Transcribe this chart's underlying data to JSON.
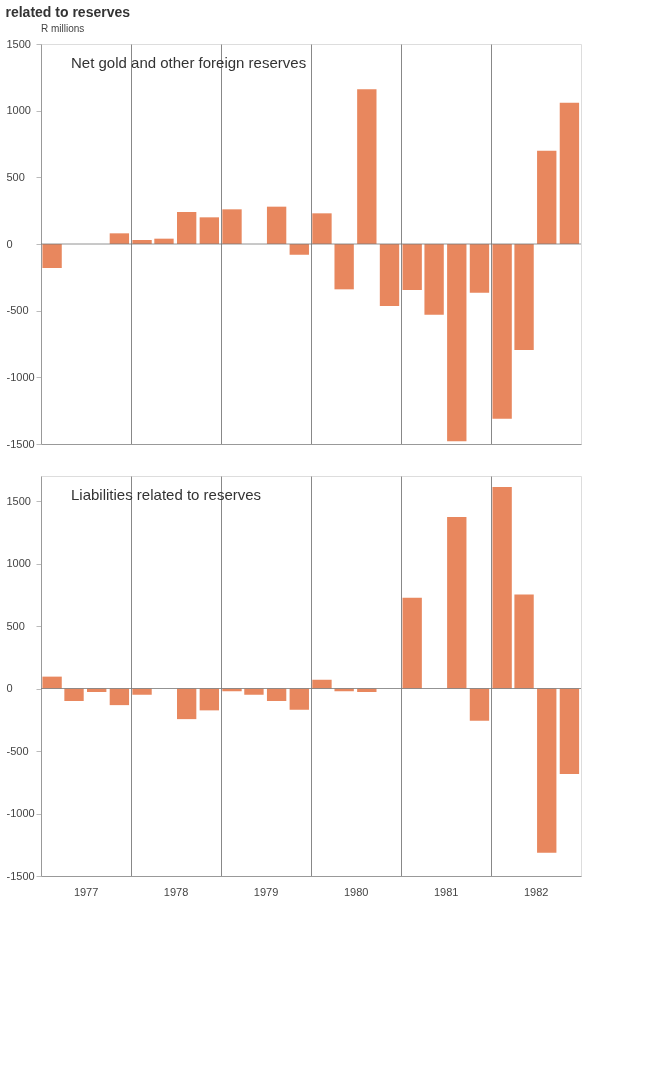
{
  "chart_data": [
    {
      "type": "bar",
      "title": "Net gold and other foreign reserves",
      "ylabel": "R millions",
      "annotations": [
        "related to reserves"
      ],
      "x": [
        "1977-02-15",
        "1977-05-15",
        "1977-08-15",
        "1977-11-15",
        "1978-02-15",
        "1978-05-15",
        "1978-08-15",
        "1978-11-15",
        "1979-02-15",
        "1979-05-15",
        "1979-08-15",
        "1979-11-15",
        "1980-02-15",
        "1980-05-15",
        "1980-08-15",
        "1980-11-15",
        "1981-02-15",
        "1981-05-15",
        "1981-08-15",
        "1981-11-15",
        "1982-02-15",
        "1982-05-15",
        "1982-08-15",
        "1982-11-15"
      ],
      "series": [
        {
          "color": "#e8875e",
          "values": [
            -180,
            0,
            0,
            80,
            30,
            40,
            240,
            200,
            260,
            0,
            280,
            -80,
            230,
            -340,
            1160,
            -465,
            -345,
            -530,
            -1480,
            -365,
            -1310,
            -795,
            700,
            1060
          ]
        }
      ],
      "xlim": [
        "1977-01-01",
        "1983-01-01"
      ],
      "xticks": [
        {
          "value": "1978-01-01",
          "label": null
        },
        {
          "value": "1979-01-01",
          "label": null
        },
        {
          "value": "1980-01-01",
          "label": null
        },
        {
          "value": "1981-01-01",
          "label": null
        },
        {
          "value": "1982-01-01",
          "label": null
        }
      ],
      "ylim": [
        -1500,
        1500
      ],
      "yticks": [
        -1500,
        -1000,
        -500,
        0,
        500,
        1000,
        1500
      ],
      "tick_labels": "y",
      "grid": "x",
      "ref_lines": [
        {
          "axis": "y",
          "value": 0
        }
      ]
    },
    {
      "type": "bar",
      "title": "Liabilities related to reserves",
      "x": [
        "1977-02-15",
        "1977-05-15",
        "1977-08-15",
        "1977-11-15",
        "1978-02-15",
        "1978-05-15",
        "1978-08-15",
        "1978-11-15",
        "1979-02-15",
        "1979-05-15",
        "1979-08-15",
        "1979-11-15",
        "1980-02-15",
        "1980-05-15",
        "1980-08-15",
        "1980-11-15",
        "1981-02-15",
        "1981-05-15",
        "1981-08-15",
        "1981-11-15",
        "1982-02-15",
        "1982-05-15",
        "1982-08-15",
        "1982-11-15"
      ],
      "series": [
        {
          "color": "#e8875e",
          "values": [
            95,
            -100,
            -28,
            -133,
            -50,
            0,
            -245,
            -175,
            -22,
            -50,
            -100,
            -170,
            70,
            -22,
            -28,
            0,
            727,
            0,
            1373,
            -258,
            1613,
            753,
            -1314,
            -683
          ]
        }
      ],
      "xlim": [
        "1977-01-01",
        "1983-01-01"
      ],
      "xticks": [
        {
          "value": "1977-07-01",
          "label": "1977"
        },
        {
          "value": "1978-01-01",
          "label": null
        },
        {
          "value": "1978-07-01",
          "label": "1978"
        },
        {
          "value": "1979-01-01",
          "label": null
        },
        {
          "value": "1979-07-01",
          "label": "1979"
        },
        {
          "value": "1980-01-01",
          "label": null
        },
        {
          "value": "1980-07-01",
          "label": "1980"
        },
        {
          "value": "1981-01-01",
          "label": null
        },
        {
          "value": "1981-07-01",
          "label": "1981"
        },
        {
          "value": "1982-01-01",
          "label": null
        },
        {
          "value": "1982-07-01",
          "label": "1982"
        }
      ],
      "ylim": [
        -1500,
        1700
      ],
      "yticks": [
        -1500,
        -1000,
        -500,
        0,
        500,
        1000,
        1500
      ],
      "grid": "x",
      "ref_lines": [
        {
          "axis": "y",
          "value": 0
        }
      ]
    }
  ]
}
